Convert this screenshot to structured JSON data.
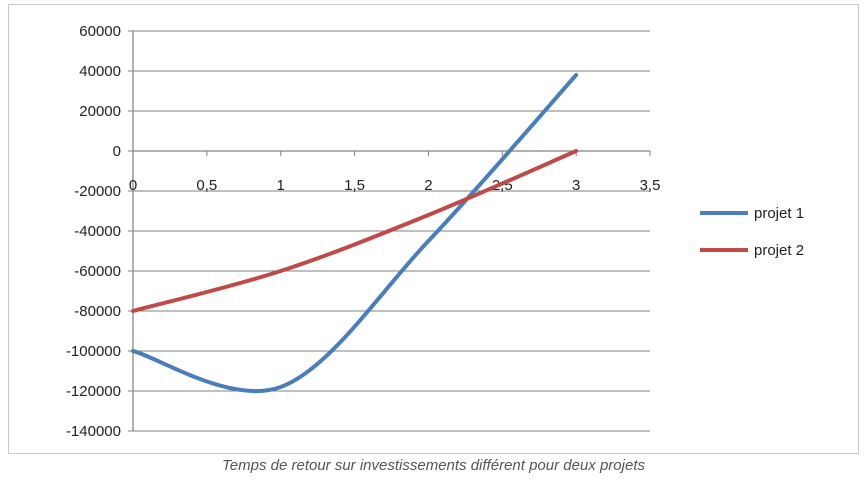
{
  "caption": "Temps de retour sur investissements différent pour deux projets",
  "colors": {
    "projet1": "#4a7ebb",
    "projet2": "#be4b48",
    "grid": "#808080",
    "axis": "#808080"
  },
  "chart_data": {
    "type": "line",
    "title": "",
    "xlabel": "",
    "ylabel": "",
    "xlim": [
      0,
      3.5
    ],
    "ylim": [
      -140000,
      60000
    ],
    "x_ticks": [
      0,
      0.5,
      1,
      1.5,
      2,
      2.5,
      3,
      3.5
    ],
    "x_tick_labels": [
      "0",
      "0,5",
      "1",
      "1,5",
      "2",
      "2,5",
      "3",
      "3,5"
    ],
    "y_ticks": [
      60000,
      40000,
      20000,
      0,
      -20000,
      -40000,
      -60000,
      -80000,
      -100000,
      -120000,
      -140000
    ],
    "y_tick_labels": [
      "60000",
      "40000",
      "20000",
      "0",
      "-20000",
      "-40000",
      "-60000",
      "-80000",
      "-100000",
      "-120000",
      "-140000"
    ],
    "grid": true,
    "legend_position": "right",
    "smooth": true,
    "series": [
      {
        "name": "projet 1",
        "color": "#4a7ebb",
        "x": [
          0,
          1,
          2,
          3
        ],
        "y": [
          -100000,
          -118000,
          -45000,
          38000
        ]
      },
      {
        "name": "projet 2",
        "color": "#be4b48",
        "x": [
          0,
          1,
          2,
          3
        ],
        "y": [
          -80000,
          -60000,
          -32000,
          0
        ]
      }
    ]
  }
}
